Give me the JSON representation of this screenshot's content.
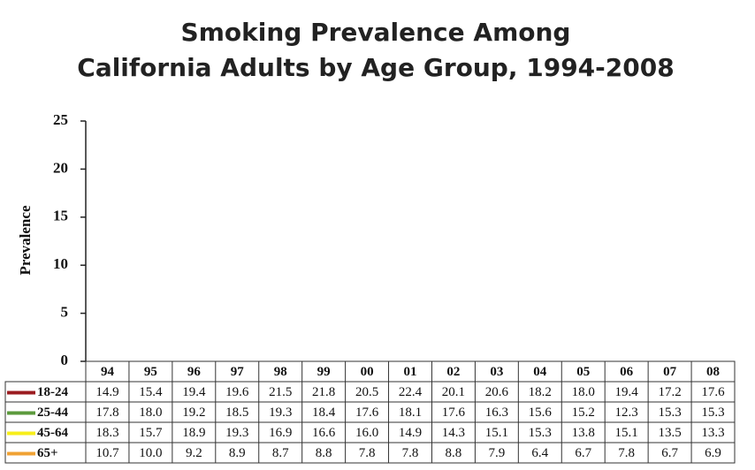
{
  "chart_data": {
    "type": "line",
    "title": [
      "Smoking Prevalence Among",
      "California Adults by Age Group, 1994-2008"
    ],
    "y_label": "Prevalence",
    "categories": [
      "94",
      "95",
      "96",
      "97",
      "98",
      "99",
      "00",
      "01",
      "02",
      "03",
      "04",
      "05",
      "06",
      "07",
      "08"
    ],
    "ylim": [
      0,
      25
    ],
    "yticks": [
      0,
      5,
      10,
      15,
      20,
      25
    ],
    "grid": false,
    "series": [
      {
        "name": "18-24",
        "color": "#9b1c20",
        "values": [
          14.9,
          15.4,
          19.4,
          19.6,
          21.5,
          21.8,
          20.5,
          22.4,
          20.1,
          20.6,
          18.2,
          18.0,
          19.4,
          17.2,
          17.6
        ],
        "value_labels": [
          "14.9",
          "15.4",
          "19.4",
          "19.6",
          "21.5",
          "21.8",
          "20.5",
          "22.4",
          "20.1",
          "20.6",
          "18.2",
          "18.0",
          "19.4",
          "17.2",
          "17.6"
        ]
      },
      {
        "name": "25-44",
        "color": "#5b9a3c",
        "values": [
          17.8,
          18.0,
          19.2,
          18.5,
          19.3,
          18.4,
          17.6,
          18.1,
          17.6,
          16.3,
          15.6,
          15.2,
          12.3,
          15.3,
          15.3
        ],
        "value_labels": [
          "17.8",
          "18.0",
          "19.2",
          "18.5",
          "19.3",
          "18.4",
          "17.6",
          "18.1",
          "17.6",
          "16.3",
          "15.6",
          "15.2",
          "12.3",
          "15.3",
          "15.3"
        ]
      },
      {
        "name": "45-64",
        "color": "#f7ee1a",
        "values": [
          18.3,
          15.7,
          18.9,
          19.3,
          16.9,
          16.6,
          16.0,
          14.9,
          14.3,
          15.1,
          15.3,
          13.8,
          15.1,
          13.5,
          13.3
        ],
        "value_labels": [
          "18.3",
          "15.7",
          "18.9",
          "19.3",
          "16.9",
          "16.6",
          "16.0",
          "14.9",
          "14.3",
          "15.1",
          "15.3",
          "13.8",
          "15.1",
          "13.5",
          "13.3"
        ]
      },
      {
        "name": "65+",
        "color": "#f0a234",
        "values": [
          10.7,
          10.0,
          9.2,
          8.9,
          8.7,
          8.8,
          7.8,
          7.8,
          8.8,
          7.9,
          6.4,
          6.7,
          7.8,
          6.7,
          6.9
        ],
        "value_labels": [
          "10.7",
          "10.0",
          "9.2",
          "8.9",
          "8.7",
          "8.8",
          "7.8",
          "7.8",
          "8.8",
          "7.9",
          "6.4",
          "6.7",
          "7.8",
          "6.7",
          "6.9"
        ]
      }
    ]
  }
}
